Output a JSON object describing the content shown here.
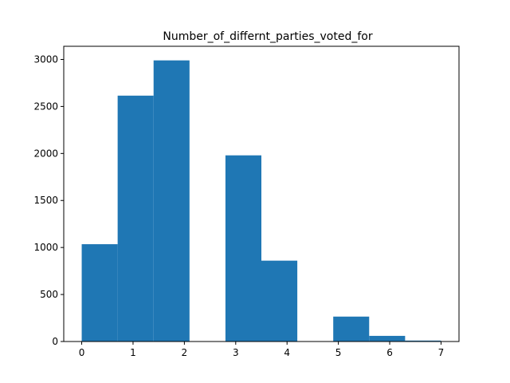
{
  "chart_data": {
    "type": "bar",
    "title": "Number_of_differnt_parties_voted_for",
    "xlabel": "",
    "ylabel": "",
    "bin_edges": [
      0,
      0.7,
      1.4,
      2.1,
      2.8,
      3.5,
      4.2,
      4.9,
      5.6,
      6.3,
      7.0
    ],
    "values": [
      1035,
      2615,
      2990,
      0,
      1980,
      860,
      0,
      265,
      60,
      10
    ],
    "xlim": [
      -0.35,
      7.35
    ],
    "ylim": [
      0,
      3140
    ],
    "xticks": [
      0,
      1,
      2,
      3,
      4,
      5,
      6,
      7
    ],
    "yticks": [
      0,
      500,
      1000,
      1500,
      2000,
      2500,
      3000
    ],
    "bar_color": "#1f77b4",
    "grid": false
  }
}
